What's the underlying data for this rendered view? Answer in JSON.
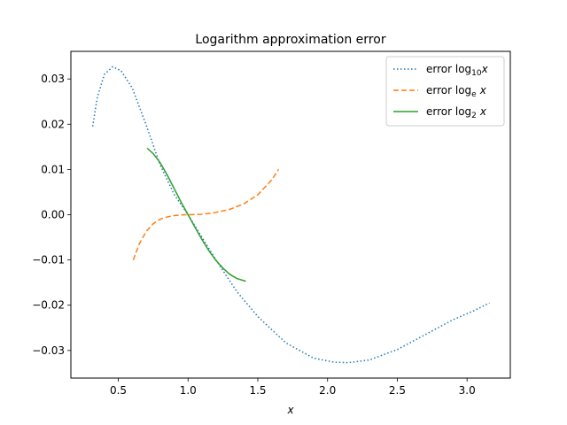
{
  "chart_data": {
    "type": "line",
    "title": "Logarithm approximation error",
    "xlabel": "x",
    "ylabel": "",
    "xlim": [
      0.16,
      3.31
    ],
    "ylim": [
      -0.0361,
      0.0361
    ],
    "xticks": [
      0.5,
      1.0,
      1.5,
      2.0,
      2.5,
      3.0
    ],
    "xtick_labels": [
      "0.5",
      "1.0",
      "1.5",
      "2.0",
      "2.5",
      "3.0"
    ],
    "yticks": [
      -0.03,
      -0.02,
      -0.01,
      0.0,
      0.01,
      0.02,
      0.03
    ],
    "ytick_labels": [
      "−0.03",
      "−0.02",
      "−0.01",
      "0.00",
      "0.01",
      "0.02",
      "0.03"
    ],
    "grid": false,
    "legend_position": "top-right",
    "series": [
      {
        "name_main": "error log",
        "name_sub": "10",
        "name_tail": "x",
        "color": "#1f77b4",
        "style": "dotted",
        "x": [
          0.316,
          0.35,
          0.4,
          0.46,
          0.52,
          0.6,
          0.7,
          0.8,
          0.9,
          1.0,
          1.1,
          1.2,
          1.35,
          1.5,
          1.7,
          1.9,
          2.05,
          2.15,
          2.3,
          2.5,
          2.7,
          2.9,
          3.05,
          3.16
        ],
        "y": [
          0.0195,
          0.026,
          0.031,
          0.0327,
          0.0318,
          0.028,
          0.0198,
          0.011,
          0.0045,
          0.0,
          -0.005,
          -0.01,
          -0.017,
          -0.0225,
          -0.0283,
          -0.0317,
          -0.0326,
          -0.0327,
          -0.0321,
          -0.0298,
          -0.0265,
          -0.0232,
          -0.0212,
          -0.0195
        ]
      },
      {
        "name_main": "error log",
        "name_sub": "e",
        "name_tail": "x",
        "color": "#ff7f0e",
        "style": "dashed",
        "x": [
          0.607,
          0.65,
          0.7,
          0.75,
          0.8,
          0.85,
          0.9,
          0.95,
          1.0,
          1.1,
          1.2,
          1.3,
          1.4,
          1.5,
          1.6,
          1.649
        ],
        "y": [
          -0.01,
          -0.0065,
          -0.0037,
          -0.002,
          -0.001,
          -0.0005,
          -0.0002,
          -5e-05,
          0.0,
          0.0001,
          0.0005,
          0.0012,
          0.0024,
          0.0044,
          0.0077,
          0.01
        ]
      },
      {
        "name_main": "error log",
        "name_sub": "2",
        "name_tail": "x",
        "color": "#2ca02c",
        "style": "solid",
        "x": [
          0.707,
          0.75,
          0.8,
          0.85,
          0.9,
          0.95,
          1.0,
          1.05,
          1.1,
          1.15,
          1.2,
          1.25,
          1.3,
          1.35,
          1.414
        ],
        "y": [
          0.0147,
          0.0135,
          0.0115,
          0.0088,
          0.0058,
          0.0028,
          0.0,
          -0.0028,
          -0.0055,
          -0.008,
          -0.0101,
          -0.0118,
          -0.0132,
          -0.0141,
          -0.0147
        ]
      }
    ]
  }
}
